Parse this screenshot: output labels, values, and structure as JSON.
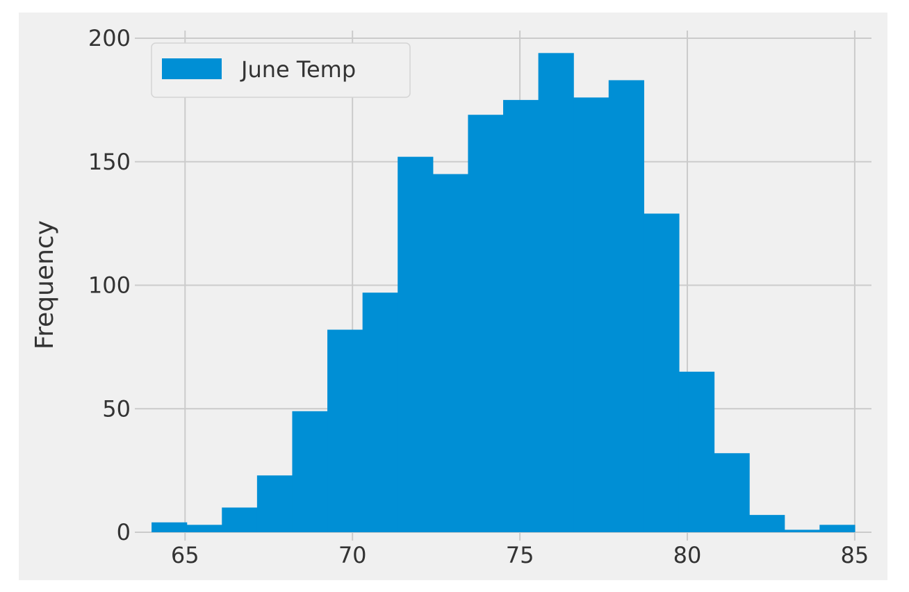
{
  "chart_data": {
    "type": "bar",
    "subtype": "histogram",
    "title": "",
    "xlabel": "",
    "ylabel": "Frequency",
    "xlim": [
      63.5,
      85.5
    ],
    "ylim": [
      0,
      205
    ],
    "x_ticks": [
      65,
      70,
      75,
      80,
      85
    ],
    "y_ticks": [
      0,
      50,
      100,
      150,
      200
    ],
    "x_tick_labels": [
      "65",
      "70",
      "75",
      "80",
      "85"
    ],
    "y_tick_labels": [
      "0",
      "50",
      "100",
      "150",
      "200"
    ],
    "grid": true,
    "legend": {
      "placement": "upper-left"
    },
    "series": [
      {
        "name": "June Temp",
        "color": "#008fd5",
        "bin_edges": [
          64.0,
          65.05,
          66.1,
          67.15,
          68.2,
          69.25,
          70.3,
          71.35,
          72.4,
          73.45,
          74.5,
          75.55,
          76.6,
          77.65,
          78.7,
          79.75,
          80.8,
          81.85,
          82.9,
          83.95,
          85.0
        ],
        "values": [
          4,
          3,
          10,
          23,
          49,
          82,
          97,
          152,
          145,
          169,
          175,
          194,
          176,
          183,
          129,
          65,
          32,
          7,
          1,
          3
        ]
      }
    ]
  },
  "colors": {
    "figure_background": "#ffffff",
    "axes_background": "#f0f0f0",
    "grid": "#cbcbcb",
    "bar": "#008fd5",
    "text": "#333333"
  }
}
